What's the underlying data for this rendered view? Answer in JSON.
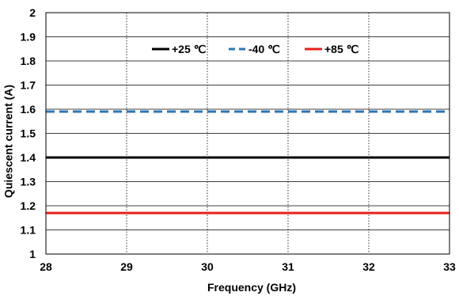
{
  "chart_data": {
    "type": "line",
    "xlabel": "Frequency (GHz)",
    "ylabel": "Quiescent current (A)",
    "xlim": [
      28,
      33
    ],
    "ylim": [
      1,
      2
    ],
    "x_ticks": [
      "28",
      "29",
      "30",
      "31",
      "32",
      "33"
    ],
    "y_ticks": [
      "1",
      "1.1",
      "1.2",
      "1.3",
      "1.4",
      "1.5",
      "1.6",
      "1.7",
      "1.8",
      "1.9",
      "2"
    ],
    "grid": "on",
    "legend_position": "top-center",
    "series": [
      {
        "name": "+25 ℃",
        "color": "#000000",
        "dash": "solid",
        "x": [
          28,
          33
        ],
        "y": [
          1.4,
          1.4
        ]
      },
      {
        "name": "-40 ℃",
        "color": "#2e75b6",
        "dash": "dashed",
        "x": [
          28,
          33
        ],
        "y": [
          1.59,
          1.59
        ]
      },
      {
        "name": "+85 ℃",
        "color": "#e8201c",
        "dash": "solid",
        "x": [
          28,
          33
        ],
        "y": [
          1.17,
          1.17
        ]
      }
    ]
  }
}
